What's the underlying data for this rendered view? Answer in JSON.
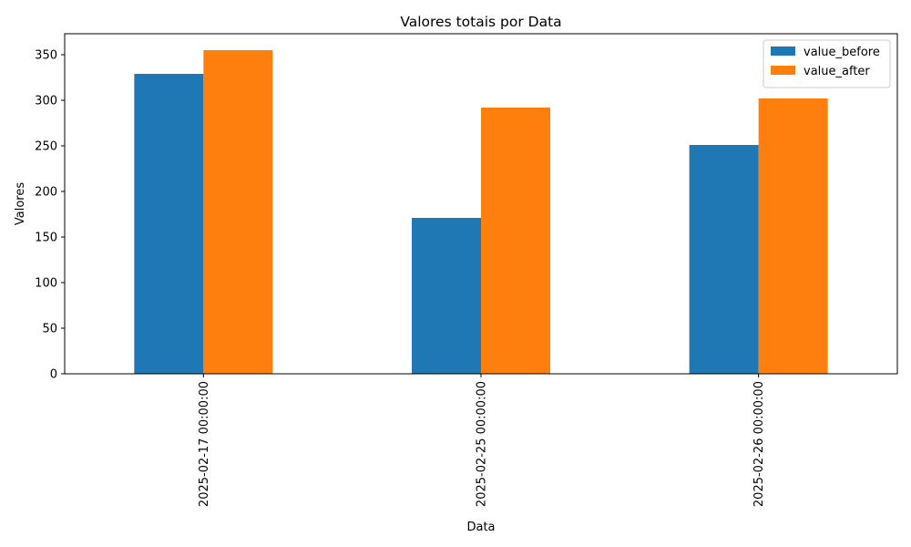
{
  "chart_data": {
    "type": "bar",
    "title": "Valores totais por Data",
    "xlabel": "Data",
    "ylabel": "Valores",
    "categories": [
      "2025-02-17 00:00:00",
      "2025-02-25 00:00:00",
      "2025-02-26 00:00:00"
    ],
    "series": [
      {
        "name": "value_before",
        "values": [
          329,
          171,
          251
        ],
        "color": "#1f77b4"
      },
      {
        "name": "value_after",
        "values": [
          355,
          292,
          302
        ],
        "color": "#ff7f0e"
      }
    ],
    "ylim": [
      0,
      373
    ],
    "yticks": [
      0,
      50,
      100,
      150,
      200,
      250,
      300,
      350
    ],
    "grid": false,
    "legend_position": "top-right"
  }
}
